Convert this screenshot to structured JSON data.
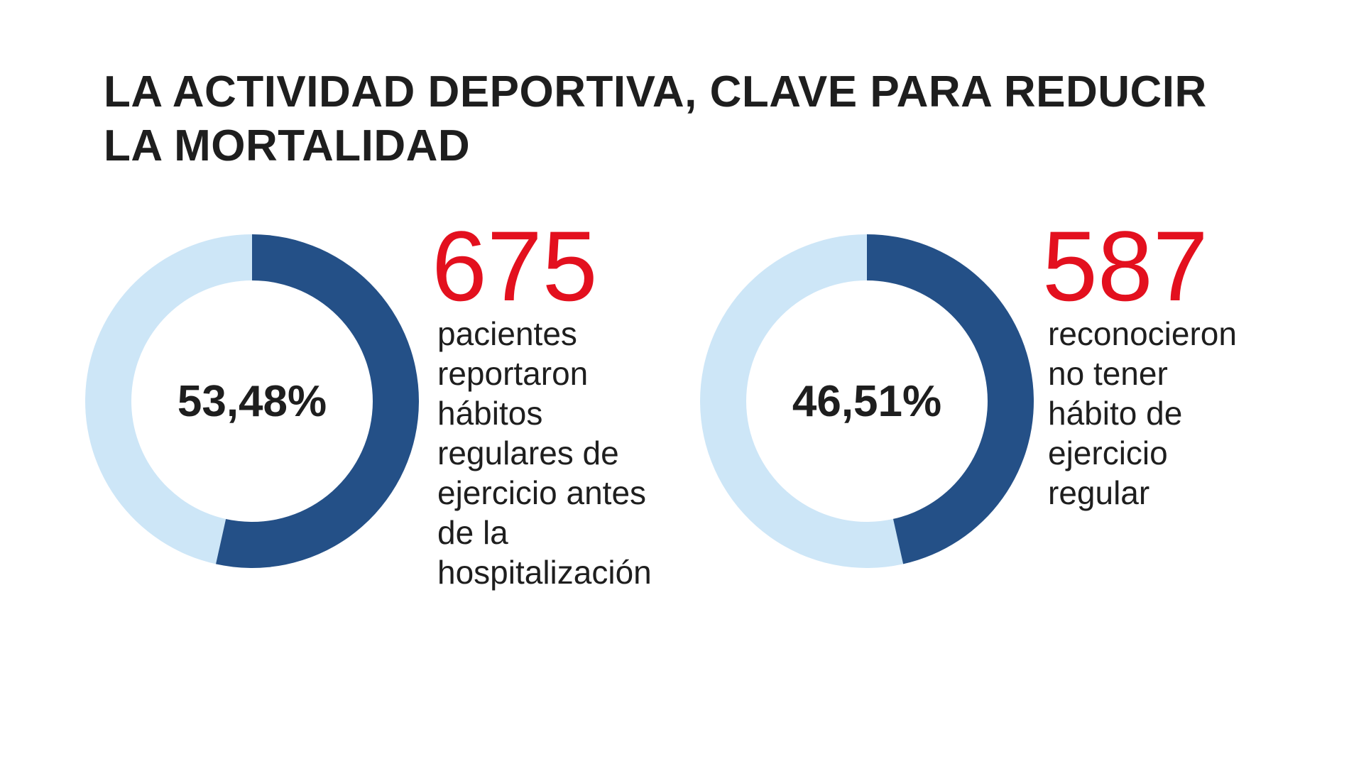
{
  "title_lines": [
    "LA ACTIVIDAD DEPORTIVA, CLAVE PARA REDUCIR",
    "LA MORTALIDAD"
  ],
  "colors": {
    "primary": "#245087",
    "secondary": "#cde6f7",
    "accent_number": "#e3101e",
    "text": "#1e1e1e",
    "background": "#ffffff"
  },
  "chart_data": [
    {
      "type": "pie",
      "center_label": "53,48%",
      "values": [
        53.48,
        46.52
      ],
      "colors": [
        "#245087",
        "#cde6f7"
      ]
    },
    {
      "type": "pie",
      "center_label": "46,51%",
      "values": [
        46.51,
        53.49
      ],
      "colors": [
        "#245087",
        "#cde6f7"
      ]
    }
  ],
  "stats": [
    {
      "number": "675",
      "description_lines": [
        "pacientes",
        "reportaron",
        "hábitos",
        "regulares de",
        "ejercicio antes",
        "de la",
        "hospitalización"
      ]
    },
    {
      "number": "587",
      "description_lines": [
        "reconocieron",
        "no tener",
        "hábito de",
        "ejercicio",
        "regular"
      ]
    }
  ]
}
